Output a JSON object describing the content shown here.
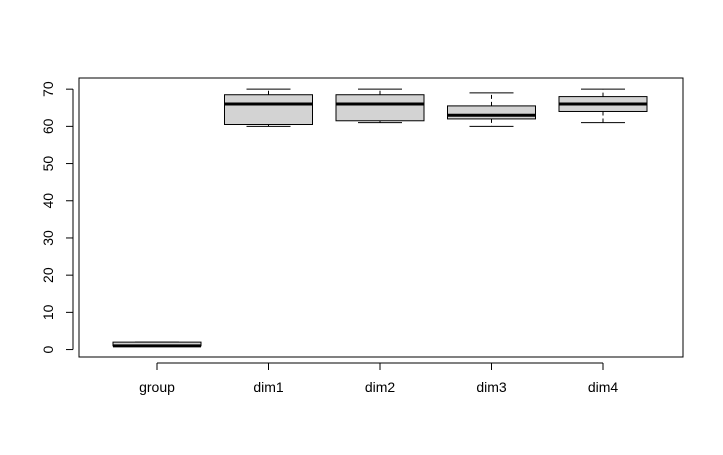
{
  "chart_data": {
    "type": "boxplot",
    "title": "",
    "xlabel": "",
    "ylabel": "",
    "categories": [
      "group",
      "dim1",
      "dim2",
      "dim3",
      "dim4"
    ],
    "boxes": [
      {
        "category": "group",
        "whisker_low": 1,
        "q1": 1,
        "median": 1,
        "q3": 2,
        "whisker_high": 2
      },
      {
        "category": "dim1",
        "whisker_low": 60,
        "q1": 60.5,
        "median": 66,
        "q3": 68.5,
        "whisker_high": 70
      },
      {
        "category": "dim2",
        "whisker_low": 61,
        "q1": 61.5,
        "median": 66,
        "q3": 68.5,
        "whisker_high": 70
      },
      {
        "category": "dim3",
        "whisker_low": 60,
        "q1": 62,
        "median": 63,
        "q3": 65.5,
        "whisker_high": 69
      },
      {
        "category": "dim4",
        "whisker_low": 61,
        "q1": 64,
        "median": 66,
        "q3": 68,
        "whisker_high": 70
      }
    ],
    "y_ticks": [
      0,
      10,
      20,
      30,
      40,
      50,
      60,
      70
    ],
    "y_tick_labels": [
      "0",
      "10",
      "20",
      "30",
      "40",
      "50",
      "60",
      "70"
    ],
    "ylim": [
      -2,
      73
    ],
    "box_fill": "#d3d3d3",
    "line_color": "#000000",
    "grid": false,
    "legend": "none"
  }
}
